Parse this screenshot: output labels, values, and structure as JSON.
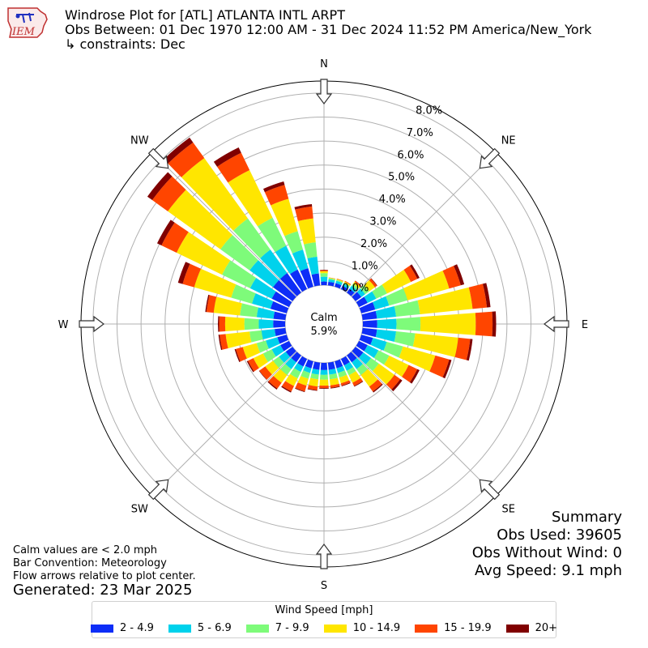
{
  "logo": {
    "text": "IEM",
    "icon": "iem-logo-icon"
  },
  "header": {
    "title": "Windrose Plot for [ATL] ATLANTA INTL ARPT",
    "obs_between": "Obs Between: 01 Dec 1970 12:00 AM - 31 Dec 2024 11:52 PM America/New_York",
    "constraints": "↳ constraints: Dec"
  },
  "summary": {
    "heading": "Summary",
    "obs_used": "Obs Used: 39605",
    "obs_without_wind": "Obs Without Wind: 0",
    "avg_speed": "Avg Speed: 9.1 mph"
  },
  "notes": {
    "calm": "Calm values are < 2.0 mph",
    "convention": "Bar Convention: Meteorology",
    "flow": "Flow arrows relative to plot center.",
    "generated": "Generated: 23 Mar 2025"
  },
  "chart_data": {
    "type": "windrose",
    "calm_label": "Calm",
    "calm_value": "5.9%",
    "radial_ticks": [
      "0.0%",
      "1.0%",
      "2.0%",
      "3.0%",
      "4.0%",
      "5.0%",
      "6.0%",
      "7.0%",
      "8.0%"
    ],
    "radial_max": 8.5,
    "compass_labels": [
      {
        "label": "N",
        "deg": 0
      },
      {
        "label": "NE",
        "deg": 45
      },
      {
        "label": "E",
        "deg": 90
      },
      {
        "label": "SE",
        "deg": 135
      },
      {
        "label": "S",
        "deg": 180
      },
      {
        "label": "SW",
        "deg": 225
      },
      {
        "label": "W",
        "deg": 270
      },
      {
        "label": "NW",
        "deg": 315
      }
    ],
    "legend_title": "Wind Speed [mph]",
    "speed_bins": [
      {
        "label": "2 - 4.9",
        "color": "#0d2df7"
      },
      {
        "label": "5 - 6.9",
        "color": "#00d2ec"
      },
      {
        "label": "7 - 9.9",
        "color": "#7efb7a"
      },
      {
        "label": "10 - 14.9",
        "color": "#ffe600"
      },
      {
        "label": "15 - 19.9",
        "color": "#ff4500"
      },
      {
        "label": "20+",
        "color": "#800000"
      }
    ],
    "directions_deg": [
      0,
      10,
      20,
      30,
      40,
      50,
      60,
      70,
      80,
      90,
      100,
      110,
      120,
      130,
      140,
      150,
      160,
      170,
      180,
      190,
      200,
      210,
      220,
      230,
      240,
      250,
      260,
      270,
      280,
      290,
      300,
      310,
      320,
      330,
      340,
      350
    ],
    "cumulative_percent": [
      [
        0.15,
        0.35,
        0.5,
        0.58,
        0.62,
        0.64
      ],
      [
        0.15,
        0.25,
        0.3,
        0.32,
        0.33,
        0.33
      ],
      [
        0.15,
        0.25,
        0.3,
        0.33,
        0.35,
        0.35
      ],
      [
        0.15,
        0.25,
        0.3,
        0.35,
        0.38,
        0.38
      ],
      [
        0.2,
        0.35,
        0.45,
        0.55,
        0.6,
        0.61
      ],
      [
        0.3,
        0.5,
        0.7,
        1.0,
        1.1,
        1.12
      ],
      [
        0.4,
        0.8,
        1.3,
        2.4,
        2.7,
        2.8
      ],
      [
        0.6,
        1.2,
        2.0,
        3.8,
        4.3,
        4.45
      ],
      [
        0.6,
        1.4,
        2.4,
        4.6,
        5.2,
        5.35
      ],
      [
        0.6,
        1.4,
        2.4,
        4.7,
        5.4,
        5.55
      ],
      [
        0.6,
        1.4,
        2.2,
        4.0,
        4.5,
        4.6
      ],
      [
        0.5,
        1.1,
        1.8,
        3.2,
        3.8,
        3.9
      ],
      [
        0.4,
        0.9,
        1.4,
        2.3,
        2.7,
        2.8
      ],
      [
        0.4,
        0.8,
        1.2,
        2.0,
        2.3,
        2.4
      ],
      [
        0.35,
        0.7,
        1.0,
        1.6,
        1.85,
        1.9
      ],
      [
        0.3,
        0.55,
        0.75,
        1.1,
        1.25,
        1.28
      ],
      [
        0.3,
        0.5,
        0.7,
        0.95,
        1.05,
        1.08
      ],
      [
        0.3,
        0.5,
        0.7,
        0.95,
        1.05,
        1.08
      ],
      [
        0.3,
        0.5,
        0.7,
        0.95,
        1.05,
        1.08
      ],
      [
        0.3,
        0.5,
        0.7,
        1.0,
        1.15,
        1.18
      ],
      [
        0.3,
        0.5,
        0.75,
        1.05,
        1.3,
        1.33
      ],
      [
        0.35,
        0.6,
        0.9,
        1.25,
        1.5,
        1.55
      ],
      [
        0.35,
        0.7,
        1.0,
        1.4,
        1.7,
        1.75
      ],
      [
        0.35,
        0.7,
        1.0,
        1.4,
        1.7,
        1.72
      ],
      [
        0.4,
        0.8,
        1.2,
        1.65,
        1.9,
        1.95
      ],
      [
        0.4,
        0.9,
        1.3,
        1.9,
        2.2,
        2.25
      ],
      [
        0.45,
        1.0,
        1.5,
        2.5,
        2.75,
        2.8
      ],
      [
        0.5,
        1.1,
        1.7,
        2.5,
        2.75,
        2.8
      ],
      [
        0.5,
        1.2,
        1.9,
        3.0,
        3.3,
        3.35
      ],
      [
        0.7,
        1.5,
        2.4,
        4.0,
        4.5,
        4.7
      ],
      [
        0.8,
        1.8,
        3.1,
        5.2,
        5.9,
        6.1
      ],
      [
        1.0,
        2.2,
        3.7,
        6.4,
        7.2,
        7.45
      ],
      [
        1.0,
        2.2,
        3.8,
        6.9,
        7.7,
        7.95
      ],
      [
        0.9,
        2.0,
        3.3,
        5.5,
        6.3,
        6.55
      ],
      [
        0.8,
        1.6,
        2.4,
        3.8,
        4.4,
        4.55
      ],
      [
        0.5,
        1.2,
        1.8,
        2.8,
        3.3,
        3.4
      ]
    ]
  }
}
